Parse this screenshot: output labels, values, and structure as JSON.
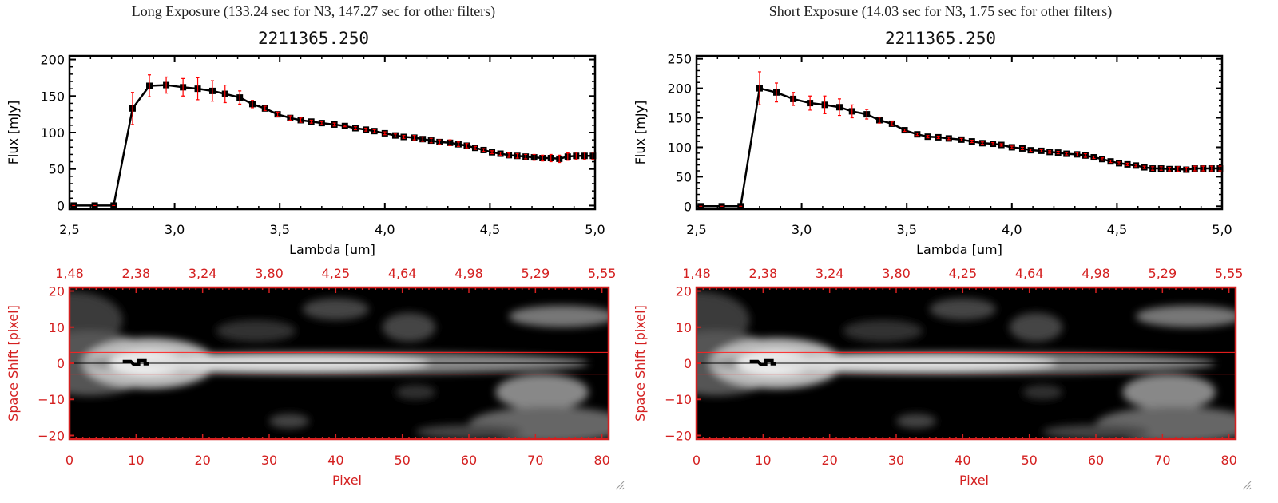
{
  "panels": [
    {
      "exposure_title": "Long Exposure (133.24 sec for N3, 147.27 sec for other filters)",
      "object_title": "2211365.250",
      "chart_data": [
        {
          "type": "line",
          "xlabel": "Lambda [um]",
          "ylabel": "Flux [mJy]",
          "xlim": [
            2.5,
            5.0
          ],
          "ylim": [
            -5,
            205
          ],
          "xticks": [
            "2.5",
            "3.0",
            "3.5",
            "4.0",
            "4.5",
            "5.0"
          ],
          "yticks": [
            "0",
            "50",
            "100",
            "150",
            "200"
          ],
          "grid": false,
          "line_color": "#000000",
          "error_color": "#ff0000",
          "x": [
            2.52,
            2.62,
            2.71,
            2.8,
            2.88,
            2.96,
            3.04,
            3.11,
            3.18,
            3.24,
            3.31,
            3.37,
            3.43,
            3.49,
            3.55,
            3.6,
            3.65,
            3.7,
            3.76,
            3.81,
            3.86,
            3.91,
            3.95,
            4.0,
            4.05,
            4.09,
            4.14,
            4.18,
            4.22,
            4.26,
            4.31,
            4.35,
            4.39,
            4.43,
            4.47,
            4.51,
            4.55,
            4.59,
            4.63,
            4.67,
            4.71,
            4.75,
            4.79,
            4.83,
            4.87,
            4.91,
            4.95,
            4.99
          ],
          "y": [
            0,
            0,
            0,
            133,
            164,
            165,
            162,
            160,
            157,
            153,
            148,
            139,
            133,
            125,
            120,
            117,
            115,
            113,
            111,
            109,
            106,
            104,
            102,
            99,
            96,
            94,
            93,
            91,
            89,
            87,
            86,
            84,
            82,
            79,
            76,
            73,
            71,
            69,
            68,
            67,
            66,
            65,
            65,
            64,
            67,
            68,
            68,
            68
          ],
          "yerr": [
            0,
            0,
            0,
            22,
            15,
            11,
            12,
            15,
            14,
            12,
            9,
            5,
            3,
            3,
            3,
            3,
            2,
            2,
            2,
            1,
            2,
            2,
            2,
            2,
            2,
            2,
            3,
            3,
            3,
            3,
            4,
            3,
            3,
            2,
            2,
            2,
            2,
            3,
            3,
            3,
            4,
            4,
            5,
            5,
            5,
            5,
            5,
            5
          ]
        },
        {
          "type": "heatmap",
          "xlabel": "Pixel",
          "ylabel": "Space Shift [pixel]",
          "xlim": [
            0,
            81
          ],
          "ylim": [
            -21,
            21
          ],
          "xticks": [
            "0",
            "10",
            "20",
            "30",
            "40",
            "50",
            "60",
            "70",
            "80"
          ],
          "yticks": [
            "20",
            "10",
            "0",
            "-10",
            "-20"
          ],
          "top_ticks": [
            "1.48",
            "2.38",
            "3.24",
            "3.80",
            "4.25",
            "4.64",
            "4.98",
            "5.29",
            "5.55"
          ],
          "axis_color": "#d42020",
          "extraction_band": [
            -3,
            3
          ],
          "colormap": "grayscale"
        }
      ]
    },
    {
      "exposure_title": "Short Exposure (14.03 sec for N3, 1.75 sec for other filters)",
      "object_title": "2211365.250",
      "chart_data": [
        {
          "type": "line",
          "xlabel": "Lambda [um]",
          "ylabel": "Flux [mJy]",
          "xlim": [
            2.5,
            5.0
          ],
          "ylim": [
            -5,
            255
          ],
          "xticks": [
            "2.5",
            "3.0",
            "3.5",
            "4.0",
            "4.5",
            "5.0"
          ],
          "yticks": [
            "0",
            "50",
            "100",
            "150",
            "200",
            "250"
          ],
          "grid": false,
          "line_color": "#000000",
          "error_color": "#ff0000",
          "x": [
            2.52,
            2.62,
            2.71,
            2.8,
            2.88,
            2.96,
            3.04,
            3.11,
            3.18,
            3.24,
            3.31,
            3.37,
            3.43,
            3.49,
            3.55,
            3.6,
            3.65,
            3.7,
            3.76,
            3.81,
            3.86,
            3.91,
            3.95,
            4.0,
            4.05,
            4.09,
            4.14,
            4.18,
            4.22,
            4.26,
            4.31,
            4.35,
            4.39,
            4.43,
            4.47,
            4.51,
            4.55,
            4.59,
            4.63,
            4.67,
            4.71,
            4.75,
            4.79,
            4.83,
            4.87,
            4.91,
            4.95,
            4.99
          ],
          "y": [
            0,
            0,
            0,
            200,
            193,
            182,
            175,
            172,
            168,
            161,
            156,
            146,
            140,
            129,
            122,
            118,
            117,
            115,
            113,
            110,
            107,
            106,
            104,
            100,
            98,
            95,
            94,
            92,
            91,
            89,
            88,
            86,
            83,
            80,
            76,
            73,
            71,
            69,
            66,
            64,
            64,
            63,
            63,
            62,
            64,
            64,
            64,
            64
          ],
          "yerr": [
            0,
            0,
            0,
            28,
            16,
            11,
            12,
            15,
            14,
            11,
            8,
            5,
            3,
            2,
            2,
            2,
            2,
            2,
            2,
            2,
            2,
            2,
            2,
            2,
            2,
            2,
            2,
            2,
            2,
            2,
            3,
            3,
            2,
            2,
            2,
            2,
            2,
            2,
            2,
            3,
            3,
            3,
            4,
            4,
            4,
            4,
            4,
            4
          ]
        },
        {
          "type": "heatmap",
          "xlabel": "Pixel",
          "ylabel": "Space Shift [pixel]",
          "xlim": [
            0,
            81
          ],
          "ylim": [
            -21,
            21
          ],
          "xticks": [
            "0",
            "10",
            "20",
            "30",
            "40",
            "50",
            "60",
            "70",
            "80"
          ],
          "yticks": [
            "20",
            "10",
            "0",
            "-10",
            "-20"
          ],
          "top_ticks": [
            "1.48",
            "2.38",
            "3.24",
            "3.80",
            "4.25",
            "4.64",
            "4.98",
            "5.29",
            "5.55"
          ],
          "axis_color": "#d42020",
          "extraction_band": [
            -3,
            3
          ],
          "colormap": "grayscale"
        }
      ]
    }
  ]
}
